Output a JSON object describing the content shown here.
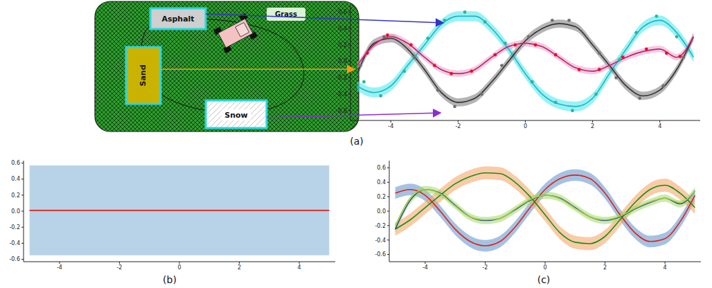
{
  "panel_labels": [
    "(a)",
    "(b)",
    "(c)"
  ],
  "diagram": {
    "labels": [
      "Asphalt",
      "Grass",
      "Sand",
      "Snow"
    ]
  },
  "chart_data": [
    {
      "type": "line",
      "x": [
        -5,
        -4.5,
        -4,
        -3.5,
        -3,
        -2.5,
        -2,
        -1.5,
        -1,
        -0.5,
        0,
        0.5,
        1,
        1.5,
        2,
        2.5,
        3,
        3.5,
        4,
        4.5,
        5
      ],
      "xlim": [
        -5.2,
        5.2
      ],
      "xticks": [
        -4,
        -2,
        0,
        2,
        4
      ],
      "ylim": [
        -0.72,
        0.68
      ],
      "yticks": [
        -0.6,
        -0.4,
        -0.2,
        {
          "value": 0,
          "label": "0.0"
        },
        0.2,
        0.4,
        0.6
      ],
      "grid": false,
      "series": [
        {
          "type": "band",
          "color": "#44e8ec",
          "values": [
            -0.3,
            -0.38,
            -0.3,
            -0.05,
            0.2,
            0.45,
            0.55,
            0.55,
            0.4,
            0.15,
            -0.15,
            -0.4,
            -0.52,
            -0.55,
            -0.45,
            -0.15,
            0.15,
            0.42,
            0.5,
            0.35,
            0.05
          ],
          "error": [
            0.06,
            0.06,
            0.06,
            0.06,
            0.06,
            0.06,
            0.06,
            0.06,
            0.06,
            0.06,
            0.06,
            0.06,
            0.06,
            0.06,
            0.06,
            0.06,
            0.06,
            0.06,
            0.06,
            0.06,
            0.06
          ]
        },
        {
          "type": "band",
          "color": "#777777",
          "values": [
            -0.15,
            0.22,
            0.28,
            0.15,
            -0.1,
            -0.38,
            -0.5,
            -0.45,
            -0.25,
            0,
            0.25,
            0.4,
            0.46,
            0.42,
            0.2,
            -0.05,
            -0.3,
            -0.42,
            -0.35,
            -0.1,
            0.3
          ],
          "error": [
            0.05,
            0.05,
            0.05,
            0.05,
            0.05,
            0.05,
            0.05,
            0.05,
            0.05,
            0.05,
            0.05,
            0.05,
            0.05,
            0.05,
            0.05,
            0.05,
            0.05,
            0.05,
            0.05,
            0.05,
            0.05
          ]
        },
        {
          "type": "band",
          "color": "#e8a0c8",
          "values": [
            -0.05,
            0.2,
            0.3,
            0.22,
            0.05,
            -0.1,
            -0.15,
            -0.1,
            0.05,
            0.18,
            0.22,
            0.18,
            0.05,
            -0.08,
            -0.12,
            -0.05,
            0.05,
            0.12,
            0.15,
            0.05,
            0.3
          ],
          "error": [
            0.04,
            0.04,
            0.04,
            0.04,
            0.04,
            0.04,
            0.04,
            0.04,
            0.04,
            0.04,
            0.04,
            0.04,
            0.04,
            0.04,
            0.04,
            0.04,
            0.04,
            0.04,
            0.04,
            0.04,
            0.04
          ]
        },
        {
          "type": "line",
          "color": "#1fb5c0",
          "values": [
            -0.3,
            -0.38,
            -0.3,
            -0.05,
            0.2,
            0.45,
            0.55,
            0.55,
            0.4,
            0.15,
            -0.15,
            -0.4,
            -0.52,
            -0.55,
            -0.45,
            -0.15,
            0.15,
            0.42,
            0.5,
            0.35,
            0.05
          ]
        },
        {
          "type": "line",
          "color": "#333333",
          "values": [
            -0.15,
            0.22,
            0.28,
            0.15,
            -0.1,
            -0.38,
            -0.5,
            -0.45,
            -0.25,
            0,
            0.25,
            0.4,
            0.46,
            0.42,
            0.2,
            -0.05,
            -0.3,
            -0.42,
            -0.35,
            -0.1,
            0.3
          ]
        },
        {
          "type": "line",
          "color": "#c02070",
          "values": [
            -0.05,
            0.2,
            0.3,
            0.22,
            0.05,
            -0.1,
            -0.15,
            -0.1,
            0.05,
            0.18,
            0.22,
            0.18,
            0.05,
            -0.08,
            -0.12,
            -0.05,
            0.05,
            0.12,
            0.15,
            0.05,
            0.3
          ]
        },
        {
          "type": "scatter",
          "marker": "o",
          "color": "#2bb5a0",
          "x": [
            -4.8,
            -4.3,
            -3.6,
            -2.9,
            -2.4,
            -1.8,
            -1.2,
            -0.6,
            0.2,
            0.9,
            1.4,
            2.1,
            2.8,
            3.3,
            3.9,
            4.5
          ],
          "values": [
            -0.25,
            -0.42,
            -0.12,
            0.28,
            0.5,
            0.6,
            0.48,
            0.22,
            -0.25,
            -0.5,
            -0.6,
            -0.4,
            0.02,
            0.35,
            0.55,
            0.3
          ]
        },
        {
          "type": "scatter",
          "marker": "o",
          "color": "#707070",
          "x": [
            -4.9,
            -4.2,
            -3.3,
            -2.6,
            -2.1,
            -1.3,
            -0.7,
            0.1,
            0.8,
            1.3,
            2.2,
            2.7,
            3.4,
            4.1,
            4.7
          ],
          "values": [
            -0.05,
            0.3,
            0.05,
            -0.35,
            -0.55,
            -0.4,
            -0.05,
            0.3,
            0.5,
            0.5,
            0.1,
            -0.2,
            -0.45,
            -0.3,
            0.05
          ]
        },
        {
          "type": "scatter",
          "marker": "o",
          "color": "#e8102a",
          "x": [
            -4.7,
            -4.1,
            -3.4,
            -2.7,
            -2.2,
            -1.6,
            -0.9,
            -0.3,
            0.3,
            0.9,
            1.6,
            2.2,
            2.9,
            3.6,
            4.2,
            4.6
          ],
          "values": [
            0.1,
            0.32,
            0.2,
            -0.05,
            -0.15,
            -0.12,
            0.08,
            0.2,
            0.2,
            0.08,
            -0.1,
            -0.1,
            0.05,
            0.15,
            0.1,
            0.06
          ]
        }
      ]
    },
    {
      "type": "line",
      "x": [
        -5,
        0,
        5
      ],
      "xlim": [
        -5.2,
        5.2
      ],
      "xticks": [
        -4,
        -2,
        0,
        2,
        4
      ],
      "ylim": [
        -0.63,
        0.63
      ],
      "yticks": [
        -0.6,
        -0.4,
        -0.2,
        {
          "value": 0,
          "label": "0.0"
        },
        0.2,
        0.4,
        0.6
      ],
      "grid": false,
      "series": [
        {
          "type": "band",
          "color": "#7eaed6",
          "values": [
            0.01,
            0.01,
            0.01
          ],
          "error": [
            0.56,
            0.56,
            0.56
          ]
        },
        {
          "type": "line",
          "color": "#e0201c",
          "values": [
            0.01,
            0.01,
            0.01
          ]
        }
      ]
    },
    {
      "type": "line",
      "x": [
        -5,
        -4.5,
        -4,
        -3.5,
        -3,
        -2.5,
        -2,
        -1.5,
        -1,
        -0.5,
        0,
        0.5,
        1,
        1.5,
        2,
        2.5,
        3,
        3.5,
        4,
        4.5,
        5
      ],
      "xlim": [
        -5.2,
        5.2
      ],
      "xticks": [
        -4,
        -2,
        0,
        2,
        4
      ],
      "ylim": [
        -0.7,
        0.7
      ],
      "yticks": [
        -0.6,
        -0.4,
        -0.2,
        {
          "value": 0,
          "label": "0.0"
        },
        0.2,
        0.4,
        0.6
      ],
      "grid": false,
      "series": [
        {
          "type": "band",
          "color": "#5b8fc9",
          "values": [
            0.25,
            0.3,
            0.22,
            0,
            -0.25,
            -0.42,
            -0.48,
            -0.42,
            -0.22,
            0.05,
            0.3,
            0.45,
            0.5,
            0.45,
            0.25,
            -0.05,
            -0.3,
            -0.42,
            -0.38,
            -0.15,
            0.22
          ],
          "error": [
            0.08,
            0.08,
            0.08,
            0.08,
            0.08,
            0.08,
            0.08,
            0.08,
            0.08,
            0.08,
            0.08,
            0.08,
            0.08,
            0.08,
            0.08,
            0.08,
            0.08,
            0.08,
            0.08,
            0.08,
            0.08
          ]
        },
        {
          "type": "band",
          "color": "#f4a15d",
          "values": [
            -0.25,
            -0.12,
            0.05,
            0.22,
            0.38,
            0.48,
            0.53,
            0.52,
            0.4,
            0.2,
            -0.05,
            -0.3,
            -0.43,
            -0.45,
            -0.35,
            -0.12,
            0.12,
            0.3,
            0.36,
            0.25,
            0.05
          ],
          "error": [
            0.09,
            0.09,
            0.09,
            0.09,
            0.09,
            0.09,
            0.09,
            0.09,
            0.09,
            0.09,
            0.09,
            0.09,
            0.09,
            0.09,
            0.09,
            0.09,
            0.09,
            0.09,
            0.09,
            0.09,
            0.09
          ]
        },
        {
          "type": "band",
          "color": "#a6d96a",
          "values": [
            -0.25,
            0.15,
            0.3,
            0.25,
            0.08,
            -0.08,
            -0.13,
            -0.1,
            0.02,
            0.15,
            0.22,
            0.18,
            0.05,
            -0.08,
            -0.13,
            -0.08,
            0.03,
            0.12,
            0.18,
            0.1,
            0.28
          ],
          "error": [
            0.05,
            0.05,
            0.05,
            0.05,
            0.05,
            0.05,
            0.05,
            0.05,
            0.05,
            0.05,
            0.05,
            0.05,
            0.05,
            0.05,
            0.05,
            0.05,
            0.05,
            0.05,
            0.05,
            0.05,
            0.05
          ]
        },
        {
          "type": "line",
          "color": "#e0201c",
          "values": [
            0.25,
            0.3,
            0.22,
            0,
            -0.25,
            -0.42,
            -0.48,
            -0.42,
            -0.22,
            0.05,
            0.3,
            0.45,
            0.5,
            0.45,
            0.25,
            -0.05,
            -0.3,
            -0.42,
            -0.38,
            -0.15,
            0.22
          ]
        },
        {
          "type": "line",
          "color": "#1a8c1a",
          "values": [
            -0.25,
            -0.12,
            0.05,
            0.22,
            0.38,
            0.48,
            0.53,
            0.52,
            0.4,
            0.2,
            -0.05,
            -0.3,
            -0.43,
            -0.45,
            -0.35,
            -0.12,
            0.12,
            0.3,
            0.36,
            0.25,
            0.05
          ]
        },
        {
          "type": "line",
          "color": "#1f4e9c",
          "values": [
            -0.25,
            0.15,
            0.3,
            0.25,
            0.08,
            -0.08,
            -0.13,
            -0.1,
            0.02,
            0.15,
            0.22,
            0.18,
            0.05,
            -0.08,
            -0.13,
            -0.08,
            0.03,
            0.12,
            0.18,
            0.1,
            0.28
          ]
        },
        {
          "type": "line",
          "color": "#a8d040",
          "values": [
            -0.2,
            0.18,
            0.3,
            0.24,
            0.07,
            -0.08,
            -0.12,
            -0.1,
            0.03,
            0.16,
            0.22,
            0.17,
            0.04,
            -0.08,
            -0.12,
            -0.07,
            0.04,
            0.13,
            0.18,
            0.12,
            0.28
          ]
        }
      ]
    }
  ]
}
